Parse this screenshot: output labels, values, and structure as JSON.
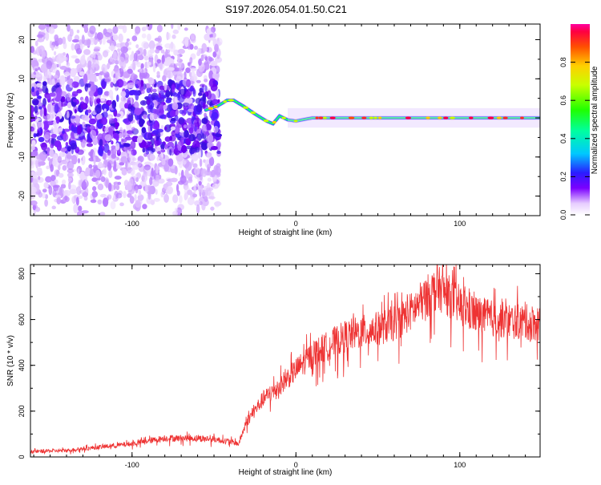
{
  "title": "S197.2026.054.01.50.C21",
  "chart_data": [
    {
      "type": "heatmap",
      "name": "spectrogram",
      "xlabel": "Height of straight line (km)",
      "ylabel": "Frequency (Hz)",
      "xlim": [
        -162,
        149
      ],
      "ylim": [
        -25,
        24
      ],
      "xticks": [
        -100,
        0,
        100
      ],
      "yticks": [
        -20,
        -10,
        0,
        10,
        20
      ],
      "colorbar": {
        "label": "Normalized spectral amplitude",
        "range": [
          0,
          1
        ],
        "ticks": [
          0.0,
          0.2,
          0.4,
          0.6,
          0.8
        ],
        "tick_labels": [
          "0.0",
          "0.2",
          "0.4",
          "0.6",
          "0.8"
        ]
      },
      "ridge": {
        "description_points_x": [
          -55,
          -48,
          -42,
          -38,
          -32,
          -25,
          -18,
          -14,
          -10,
          -5,
          0,
          10,
          149
        ],
        "description_points_y": [
          2,
          3,
          4.5,
          4.5,
          3,
          1,
          -0.8,
          -1.5,
          0.5,
          -0.5,
          -0.8,
          0,
          0
        ]
      },
      "scatter_region_x": [
        -162,
        -55
      ],
      "scatter_region_y": [
        -25,
        24
      ]
    },
    {
      "type": "line",
      "name": "snr",
      "xlabel": "Height of straight line (km)",
      "ylabel": "SNR (10 * v/v)",
      "xlim": [
        -162,
        149
      ],
      "ylim": [
        0,
        840
      ],
      "xticks": [
        -100,
        0,
        100
      ],
      "yticks": [
        0,
        200,
        400,
        600,
        800
      ],
      "color": "#ee3333",
      "trend_x": [
        -162,
        -140,
        -120,
        -100,
        -80,
        -60,
        -50,
        -40,
        -35,
        -30,
        -25,
        -20,
        -10,
        0,
        10,
        20,
        30,
        40,
        50,
        60,
        70,
        80,
        86,
        90,
        100,
        110,
        120,
        130,
        149
      ],
      "trend_y": [
        25,
        30,
        45,
        60,
        85,
        85,
        80,
        70,
        60,
        160,
        210,
        260,
        320,
        390,
        460,
        500,
        540,
        560,
        575,
        600,
        650,
        720,
        760,
        740,
        680,
        640,
        620,
        610,
        600
      ]
    }
  ]
}
